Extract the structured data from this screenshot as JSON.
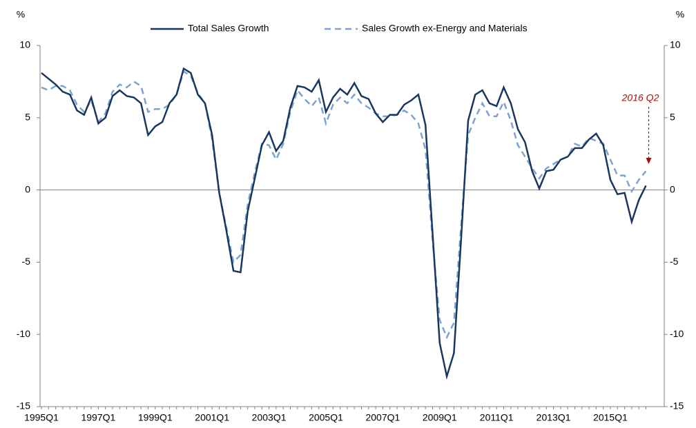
{
  "chart_data": {
    "type": "line",
    "ylabel": "%",
    "y2label": "%",
    "categories": [
      "1995Q1",
      null,
      null,
      null,
      null,
      null,
      null,
      null,
      "1997Q1",
      null,
      null,
      null,
      null,
      null,
      null,
      null,
      "1999Q1",
      null,
      null,
      null,
      null,
      null,
      null,
      null,
      "2001Q1",
      null,
      null,
      null,
      null,
      null,
      null,
      null,
      "2003Q1",
      null,
      null,
      null,
      null,
      null,
      null,
      null,
      "2005Q1",
      null,
      null,
      null,
      null,
      null,
      null,
      null,
      "2007Q1",
      null,
      null,
      null,
      null,
      null,
      null,
      null,
      "2009Q1",
      null,
      null,
      null,
      null,
      null,
      null,
      null,
      "2011Q1",
      null,
      null,
      null,
      null,
      null,
      null,
      null,
      "2013Q1",
      null,
      null,
      null,
      null,
      null,
      null,
      null,
      "2015Q1",
      null,
      null,
      null,
      null,
      null
    ],
    "series": [
      {
        "name": "Total Sales Growth",
        "color": "#17375e",
        "dashed": false,
        "values": [
          8.1,
          7.7,
          7.3,
          6.8,
          6.6,
          5.5,
          5.2,
          6.4,
          4.6,
          5.0,
          6.5,
          6.9,
          6.5,
          6.4,
          6.0,
          3.8,
          4.4,
          4.7,
          6.0,
          6.6,
          8.4,
          8.1,
          6.6,
          6.0,
          3.8,
          -0.2,
          -2.8,
          -5.6,
          -5.7,
          -1.5,
          0.8,
          3.1,
          4.0,
          2.7,
          3.4,
          5.7,
          7.2,
          7.1,
          6.8,
          7.6,
          5.4,
          6.4,
          7.0,
          6.6,
          7.4,
          6.5,
          6.3,
          5.3,
          4.7,
          5.2,
          5.2,
          5.9,
          6.2,
          6.6,
          4.5,
          -3.0,
          -10.6,
          -12.9,
          -11.3,
          -3.5,
          4.8,
          6.6,
          6.9,
          6.0,
          5.8,
          7.1,
          6.0,
          4.2,
          3.3,
          1.3,
          0.1,
          1.3,
          1.4,
          2.1,
          2.3,
          2.9,
          2.9,
          3.5,
          3.9,
          3.1,
          0.7,
          -0.3,
          -0.2,
          -2.2,
          -0.7,
          0.3
        ]
      },
      {
        "name": "Sales Growth ex-Energy and Materials",
        "color": "#7ea2d0",
        "dashed": true,
        "values": [
          7.1,
          6.9,
          7.2,
          7.2,
          6.9,
          5.9,
          5.4,
          6.2,
          4.7,
          5.3,
          6.8,
          7.3,
          7.1,
          7.5,
          7.2,
          5.4,
          5.6,
          5.6,
          5.9,
          6.6,
          8.2,
          7.9,
          6.7,
          6.0,
          3.5,
          -0.2,
          -2.6,
          -5.0,
          -4.5,
          -1.0,
          1.2,
          3.2,
          3.1,
          2.1,
          3.2,
          5.4,
          6.9,
          6.3,
          5.8,
          6.4,
          4.6,
          5.9,
          6.4,
          6.0,
          6.6,
          6.0,
          5.7,
          5.3,
          5.1,
          5.1,
          5.2,
          5.5,
          5.2,
          4.6,
          2.8,
          -3.5,
          -9.0,
          -10.2,
          -9.2,
          -2.5,
          3.8,
          5.0,
          6.0,
          5.1,
          5.1,
          6.1,
          4.8,
          3.1,
          2.3,
          1.5,
          0.8,
          1.5,
          1.8,
          2.1,
          2.3,
          3.2,
          3.0,
          3.6,
          3.4,
          3.2,
          2.1,
          1.0,
          1.0,
          -0.1,
          0.7,
          1.3
        ]
      }
    ],
    "ylim": [
      -15,
      10
    ],
    "yticks": [
      -15,
      -10,
      -5,
      0,
      5,
      10
    ],
    "y2lim": [
      -15,
      10
    ],
    "y2ticks": [
      -15,
      -10,
      -5,
      0,
      5,
      10
    ],
    "hline": 0,
    "legend": "top",
    "annotation": {
      "text": "2016 Q2",
      "color": "#c00000"
    }
  }
}
